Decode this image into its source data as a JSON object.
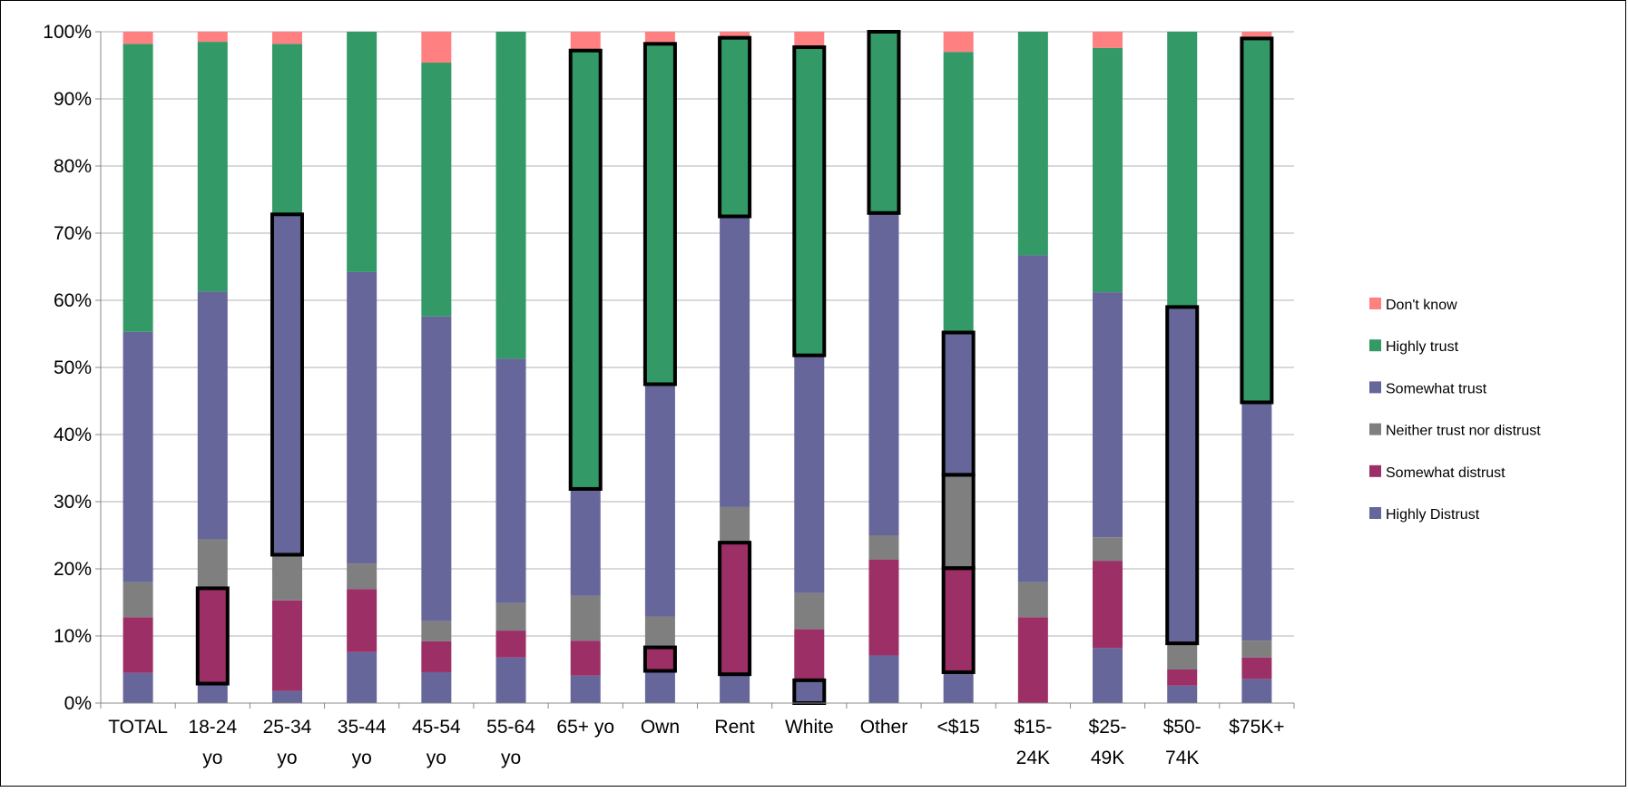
{
  "chart_data": {
    "type": "bar",
    "stacked": true,
    "percent": true,
    "title": "",
    "xlabel": "",
    "ylabel": "",
    "ylim": [
      0,
      100
    ],
    "y_ticks": [
      "0%",
      "10%",
      "20%",
      "30%",
      "40%",
      "50%",
      "60%",
      "70%",
      "80%",
      "90%",
      "100%"
    ],
    "grid": true,
    "legend_position": "right",
    "categories": [
      [
        "TOTAL"
      ],
      [
        "18-24",
        "yo"
      ],
      [
        "25-34",
        "yo"
      ],
      [
        "35-44",
        "yo"
      ],
      [
        "45-54",
        "yo"
      ],
      [
        "55-64",
        "yo"
      ],
      [
        "65+ yo"
      ],
      [
        "Own"
      ],
      [
        "Rent"
      ],
      [
        "White"
      ],
      [
        "Other"
      ],
      [
        "<$15"
      ],
      [
        "$15-",
        "24K"
      ],
      [
        "$25-",
        "49K"
      ],
      [
        "$50-",
        "74K"
      ],
      [
        "$75K+"
      ]
    ],
    "series": [
      {
        "name": "Highly Distrust",
        "color": "#66669a",
        "values": [
          4.5,
          2.9,
          1.8,
          7.6,
          4.6,
          6.8,
          4.1,
          4.8,
          4.3,
          3.4,
          7.1,
          4.6,
          0.0,
          8.2,
          2.6,
          3.6
        ]
      },
      {
        "name": "Somewhat distrust",
        "color": "#9b2f66",
        "values": [
          8.3,
          14.2,
          13.5,
          9.4,
          4.6,
          4.0,
          5.2,
          3.5,
          19.6,
          7.6,
          14.3,
          15.5,
          12.8,
          13.0,
          2.4,
          3.2
        ]
      },
      {
        "name": "Neither trust nor distrust",
        "color": "#7f7f7f",
        "values": [
          5.2,
          7.3,
          6.8,
          3.8,
          3.0,
          4.1,
          6.7,
          4.6,
          5.3,
          5.4,
          3.6,
          13.9,
          5.2,
          3.5,
          3.9,
          2.5
        ]
      },
      {
        "name": "Somewhat trust",
        "color": "#66669a",
        "values": [
          37.3,
          36.9,
          50.7,
          43.4,
          45.4,
          36.4,
          15.9,
          34.6,
          43.3,
          35.4,
          48.0,
          21.2,
          48.7,
          36.5,
          50.1,
          35.5
        ]
      },
      {
        "name": "Highly trust",
        "color": "#339966",
        "values": [
          42.9,
          37.2,
          25.4,
          35.8,
          37.8,
          48.7,
          65.3,
          50.7,
          26.6,
          45.9,
          27.0,
          41.8,
          33.3,
          36.4,
          41.0,
          54.2
        ]
      },
      {
        "name": "Don't know",
        "color": "#ff8080",
        "values": [
          1.8,
          1.5,
          1.8,
          0.0,
          4.6,
          0.0,
          2.8,
          1.8,
          0.9,
          2.3,
          0.0,
          3.0,
          0.0,
          2.4,
          0.0,
          1.0
        ]
      }
    ],
    "highlighted_segments": [
      {
        "category": 1,
        "series": 1
      },
      {
        "category": 2,
        "series": 3
      },
      {
        "category": 6,
        "series": 4
      },
      {
        "category": 7,
        "series": 1
      },
      {
        "category": 7,
        "series": 4
      },
      {
        "category": 8,
        "series": 1
      },
      {
        "category": 8,
        "series": 4
      },
      {
        "category": 9,
        "series": 0
      },
      {
        "category": 9,
        "series": 4
      },
      {
        "category": 10,
        "series": 4
      },
      {
        "category": 11,
        "series": 1
      },
      {
        "category": 11,
        "series": 2
      },
      {
        "category": 11,
        "series": 3
      },
      {
        "category": 14,
        "series": 3
      },
      {
        "category": 15,
        "series": 4
      }
    ],
    "legend_order": [
      "Don't know",
      "Highly trust",
      "Somewhat trust",
      "Neither trust nor distrust",
      "Somewhat distrust",
      "Highly Distrust"
    ]
  }
}
